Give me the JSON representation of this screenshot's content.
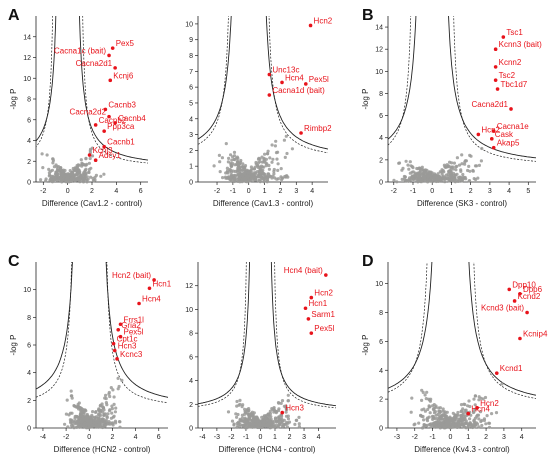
{
  "figure": {
    "panel_letters": [
      "A",
      "B",
      "C",
      "D"
    ]
  },
  "colors": {
    "background_points": "#9a9a98",
    "hit_points": "#e8131b",
    "labels": "#e8131b",
    "curves": "#222222"
  },
  "chart_data": [
    {
      "id": "cav12",
      "type": "scatter",
      "panel_letter": "A",
      "xlabel": "Difference (Cav1.2 - control)",
      "ylabel": "-log P",
      "xlim": [
        -2.6,
        6.6
      ],
      "ylim": [
        0,
        16
      ],
      "xticks": [
        -2,
        0,
        2,
        4,
        6
      ],
      "yticks": [
        0,
        2,
        4,
        6,
        8,
        10,
        12,
        14
      ],
      "curve_c": [
        5.5,
        3.5
      ],
      "curve_x0": [
        0.6,
        1.0
      ],
      "hits": [
        {
          "label": "Pex5",
          "x": 3.7,
          "y": 12.9
        },
        {
          "label": "Cacna1c (bait)",
          "x": 3.4,
          "y": 12.2
        },
        {
          "label": "Cacna2d1",
          "x": 3.9,
          "y": 11.0
        },
        {
          "label": "Kcnj6",
          "x": 3.5,
          "y": 9.8
        },
        {
          "label": "Cacnb3",
          "x": 3.1,
          "y": 7.0
        },
        {
          "label": "Cacna2d2",
          "x": 3.4,
          "y": 6.3
        },
        {
          "label": "Cacnb4",
          "x": 3.9,
          "y": 5.7
        },
        {
          "label": "Cacnb2",
          "x": 2.3,
          "y": 5.5
        },
        {
          "label": "Ppp3ca",
          "x": 3.0,
          "y": 4.9
        },
        {
          "label": "Cacnb1",
          "x": 3.0,
          "y": 3.4
        },
        {
          "label": "Kcnj3",
          "x": 1.8,
          "y": 2.6
        },
        {
          "label": "Adcy1",
          "x": 2.3,
          "y": 2.1
        }
      ],
      "bg": {
        "xmax": 5.2,
        "ymax": 5.5,
        "seed": 11
      }
    },
    {
      "id": "cav13",
      "type": "scatter",
      "panel_letter": "",
      "xlabel": "Difference (Cav1.3 - control)",
      "ylabel": "",
      "xlim": [
        -3.2,
        5.0
      ],
      "ylim": [
        0,
        10.5
      ],
      "xticks": [
        -2,
        -1,
        0,
        1,
        2,
        3,
        4
      ],
      "yticks": [
        0,
        1,
        2,
        3,
        4,
        5,
        6,
        7,
        8,
        9,
        10
      ],
      "curve_c": [
        3.8,
        2.6
      ],
      "curve_x0": [
        0.7,
        1.0
      ],
      "hits": [
        {
          "label": "Hcn2",
          "x": 3.9,
          "y": 9.9
        },
        {
          "label": "Unc13c",
          "x": 1.3,
          "y": 6.8
        },
        {
          "label": "Hcn4",
          "x": 2.1,
          "y": 6.3
        },
        {
          "label": "Pex5l",
          "x": 3.6,
          "y": 6.2
        },
        {
          "label": "Cacna1d (bait)",
          "x": 1.3,
          "y": 5.5
        },
        {
          "label": "Rimbp2",
          "x": 3.3,
          "y": 3.1
        }
      ],
      "bg": {
        "xmax": 4.5,
        "ymax": 4.0,
        "seed": 23
      }
    },
    {
      "id": "sk3",
      "type": "scatter",
      "panel_letter": "B",
      "xlabel": "Difference (SK3 - control)",
      "ylabel": "-log P",
      "xlim": [
        -2.3,
        5.4
      ],
      "ylim": [
        0,
        15
      ],
      "xticks": [
        -2,
        -1,
        0,
        1,
        2,
        3,
        4,
        5
      ],
      "yticks": [
        0,
        2,
        4,
        6,
        8,
        10,
        12,
        14
      ],
      "curve_c": [
        4.8,
        3.0
      ],
      "curve_x0": [
        0.5,
        0.9
      ],
      "hits": [
        {
          "label": "Tsc1",
          "x": 3.7,
          "y": 13.1
        },
        {
          "label": "Kcnn3 (bait)",
          "x": 3.3,
          "y": 12.0
        },
        {
          "label": "Kcnn2",
          "x": 3.3,
          "y": 10.4
        },
        {
          "label": "Tsc2",
          "x": 3.3,
          "y": 9.2
        },
        {
          "label": "Tbc1d7",
          "x": 3.4,
          "y": 8.4
        },
        {
          "label": "Cacna2d1",
          "x": 4.1,
          "y": 6.6
        },
        {
          "label": "Cacna1e",
          "x": 3.2,
          "y": 4.6
        },
        {
          "label": "Hcn2",
          "x": 2.4,
          "y": 4.3
        },
        {
          "label": "Cask",
          "x": 3.1,
          "y": 3.9
        },
        {
          "label": "Akap5",
          "x": 3.2,
          "y": 3.1
        }
      ],
      "bg": {
        "xmax": 4.5,
        "ymax": 4.5,
        "seed": 37
      }
    },
    {
      "id": "hcn2",
      "type": "scatter",
      "panel_letter": "C",
      "xlabel": "Difference (HCN2 - control)",
      "ylabel": "-log P",
      "xlim": [
        -4.6,
        6.8
      ],
      "ylim": [
        0,
        12
      ],
      "xticks": [
        -4,
        -2,
        0,
        2,
        4,
        6
      ],
      "yticks": [
        0,
        2,
        4,
        6,
        8,
        10
      ],
      "curve_c": [
        6.0,
        3.5
      ],
      "curve_x0": [
        0.9,
        1.2
      ],
      "hits": [
        {
          "label": "Hcn2 (bait)",
          "x": 5.6,
          "y": 10.7
        },
        {
          "label": "Hcn1",
          "x": 5.2,
          "y": 10.1
        },
        {
          "label": "Hcn4",
          "x": 4.3,
          "y": 9.0
        },
        {
          "label": "Frrs1l",
          "x": 2.7,
          "y": 7.5
        },
        {
          "label": "Gria2",
          "x": 2.5,
          "y": 7.1
        },
        {
          "label": "Pex5l",
          "x": 2.7,
          "y": 6.6
        },
        {
          "label": "Cpt1c",
          "x": 2.1,
          "y": 6.1
        },
        {
          "label": "Hcn3",
          "x": 2.2,
          "y": 5.6
        },
        {
          "label": "Kcnc3",
          "x": 2.4,
          "y": 5.0
        }
      ],
      "bg": {
        "xmax": 5.5,
        "ymax": 4.0,
        "seed": 41
      }
    },
    {
      "id": "hcn4",
      "type": "scatter",
      "panel_letter": "",
      "xlabel": "Difference (HCN4 - control)",
      "ylabel": "",
      "xlim": [
        -4.3,
        5.2
      ],
      "ylim": [
        0,
        14
      ],
      "xticks": [
        -4,
        -3,
        -2,
        -1,
        0,
        1,
        2,
        3,
        4
      ],
      "yticks": [
        0,
        2,
        4,
        6,
        8,
        10,
        12
      ],
      "curve_c": [
        3.2,
        2.2
      ],
      "curve_x0": [
        0.5,
        0.8
      ],
      "hits": [
        {
          "label": "Hcn4 (bait)",
          "x": 4.5,
          "y": 12.9
        },
        {
          "label": "Hcn2",
          "x": 3.5,
          "y": 11.0
        },
        {
          "label": "Hcn1",
          "x": 3.1,
          "y": 10.1
        },
        {
          "label": "Sarm1",
          "x": 3.3,
          "y": 9.2
        },
        {
          "label": "Pex5l",
          "x": 3.5,
          "y": 8.0
        },
        {
          "label": "Hcn3",
          "x": 1.5,
          "y": 1.3
        }
      ],
      "bg": {
        "xmax": 4.2,
        "ymax": 4.5,
        "seed": 53
      }
    },
    {
      "id": "kv43",
      "type": "scatter",
      "panel_letter": "D",
      "xlabel": "Difference (Kv4.3 - control)",
      "ylabel": "-log P",
      "xlim": [
        -3.5,
        4.8
      ],
      "ylim": [
        0,
        11.5
      ],
      "xticks": [
        -3,
        -2,
        -1,
        0,
        1,
        2,
        3,
        4
      ],
      "yticks": [
        0,
        2,
        4,
        6,
        8,
        10
      ],
      "curve_c": [
        4.5,
        3.2
      ],
      "curve_x0": [
        0.6,
        1.0
      ],
      "hits": [
        {
          "label": "Dpp10",
          "x": 3.3,
          "y": 9.6
        },
        {
          "label": "Dpp6",
          "x": 3.9,
          "y": 9.3
        },
        {
          "label": "Kcnd2",
          "x": 3.6,
          "y": 8.8
        },
        {
          "label": "Kcnd3 (bait)",
          "x": 4.3,
          "y": 8.0
        },
        {
          "label": "Kcnip4",
          "x": 3.9,
          "y": 6.2
        },
        {
          "label": "Kcnd1",
          "x": 2.6,
          "y": 3.8
        },
        {
          "label": "Hcn2",
          "x": 1.5,
          "y": 1.4
        },
        {
          "label": "Hcn4",
          "x": 1.0,
          "y": 1.0
        }
      ],
      "bg": {
        "xmax": 3.5,
        "ymax": 4.2,
        "seed": 67
      }
    }
  ]
}
